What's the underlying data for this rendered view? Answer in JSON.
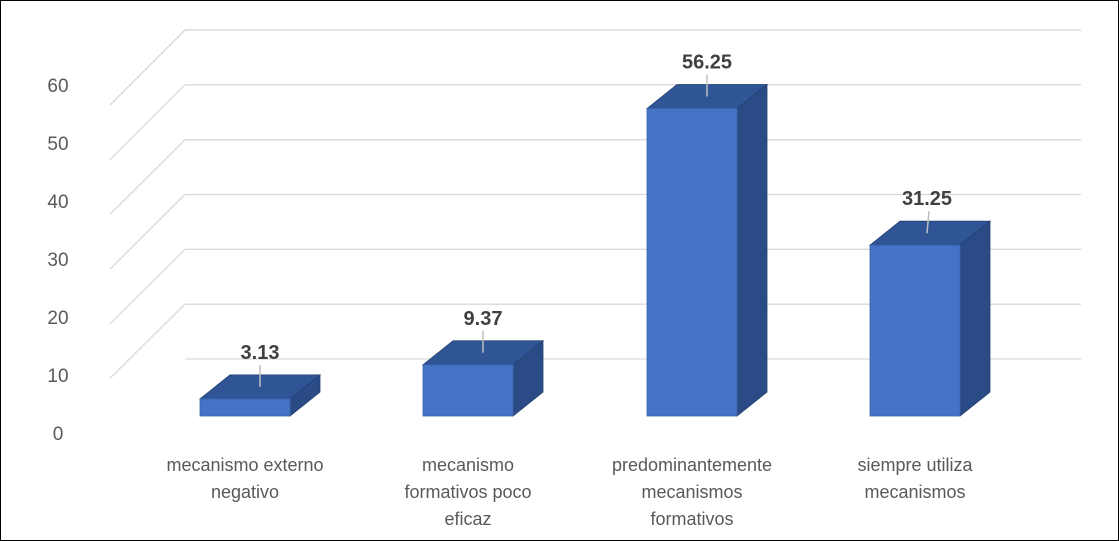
{
  "chart_data": {
    "type": "bar",
    "style": "3d-column",
    "categories": [
      [
        "mecanismo externo",
        "negativo"
      ],
      [
        "mecanismo",
        "formativos poco",
        "eficaz"
      ],
      [
        "predominantemente",
        "mecanismos",
        "formativos"
      ],
      [
        "siempre utiliza",
        "mecanismos"
      ]
    ],
    "values": [
      3.13,
      9.37,
      56.25,
      31.25
    ],
    "data_labels": [
      "3.13",
      "9.37",
      "56.25",
      "31.25"
    ],
    "yticks": [
      "0",
      "10",
      "20",
      "30",
      "40",
      "50",
      "60"
    ],
    "ylim": [
      0,
      60
    ],
    "grid": true,
    "legend": false,
    "colors": {
      "front": "#4472C4",
      "top": "#2F5597",
      "side": "#2A4B86",
      "grid": "#D9D9D9",
      "text": "#595959",
      "label": "#404040"
    }
  }
}
